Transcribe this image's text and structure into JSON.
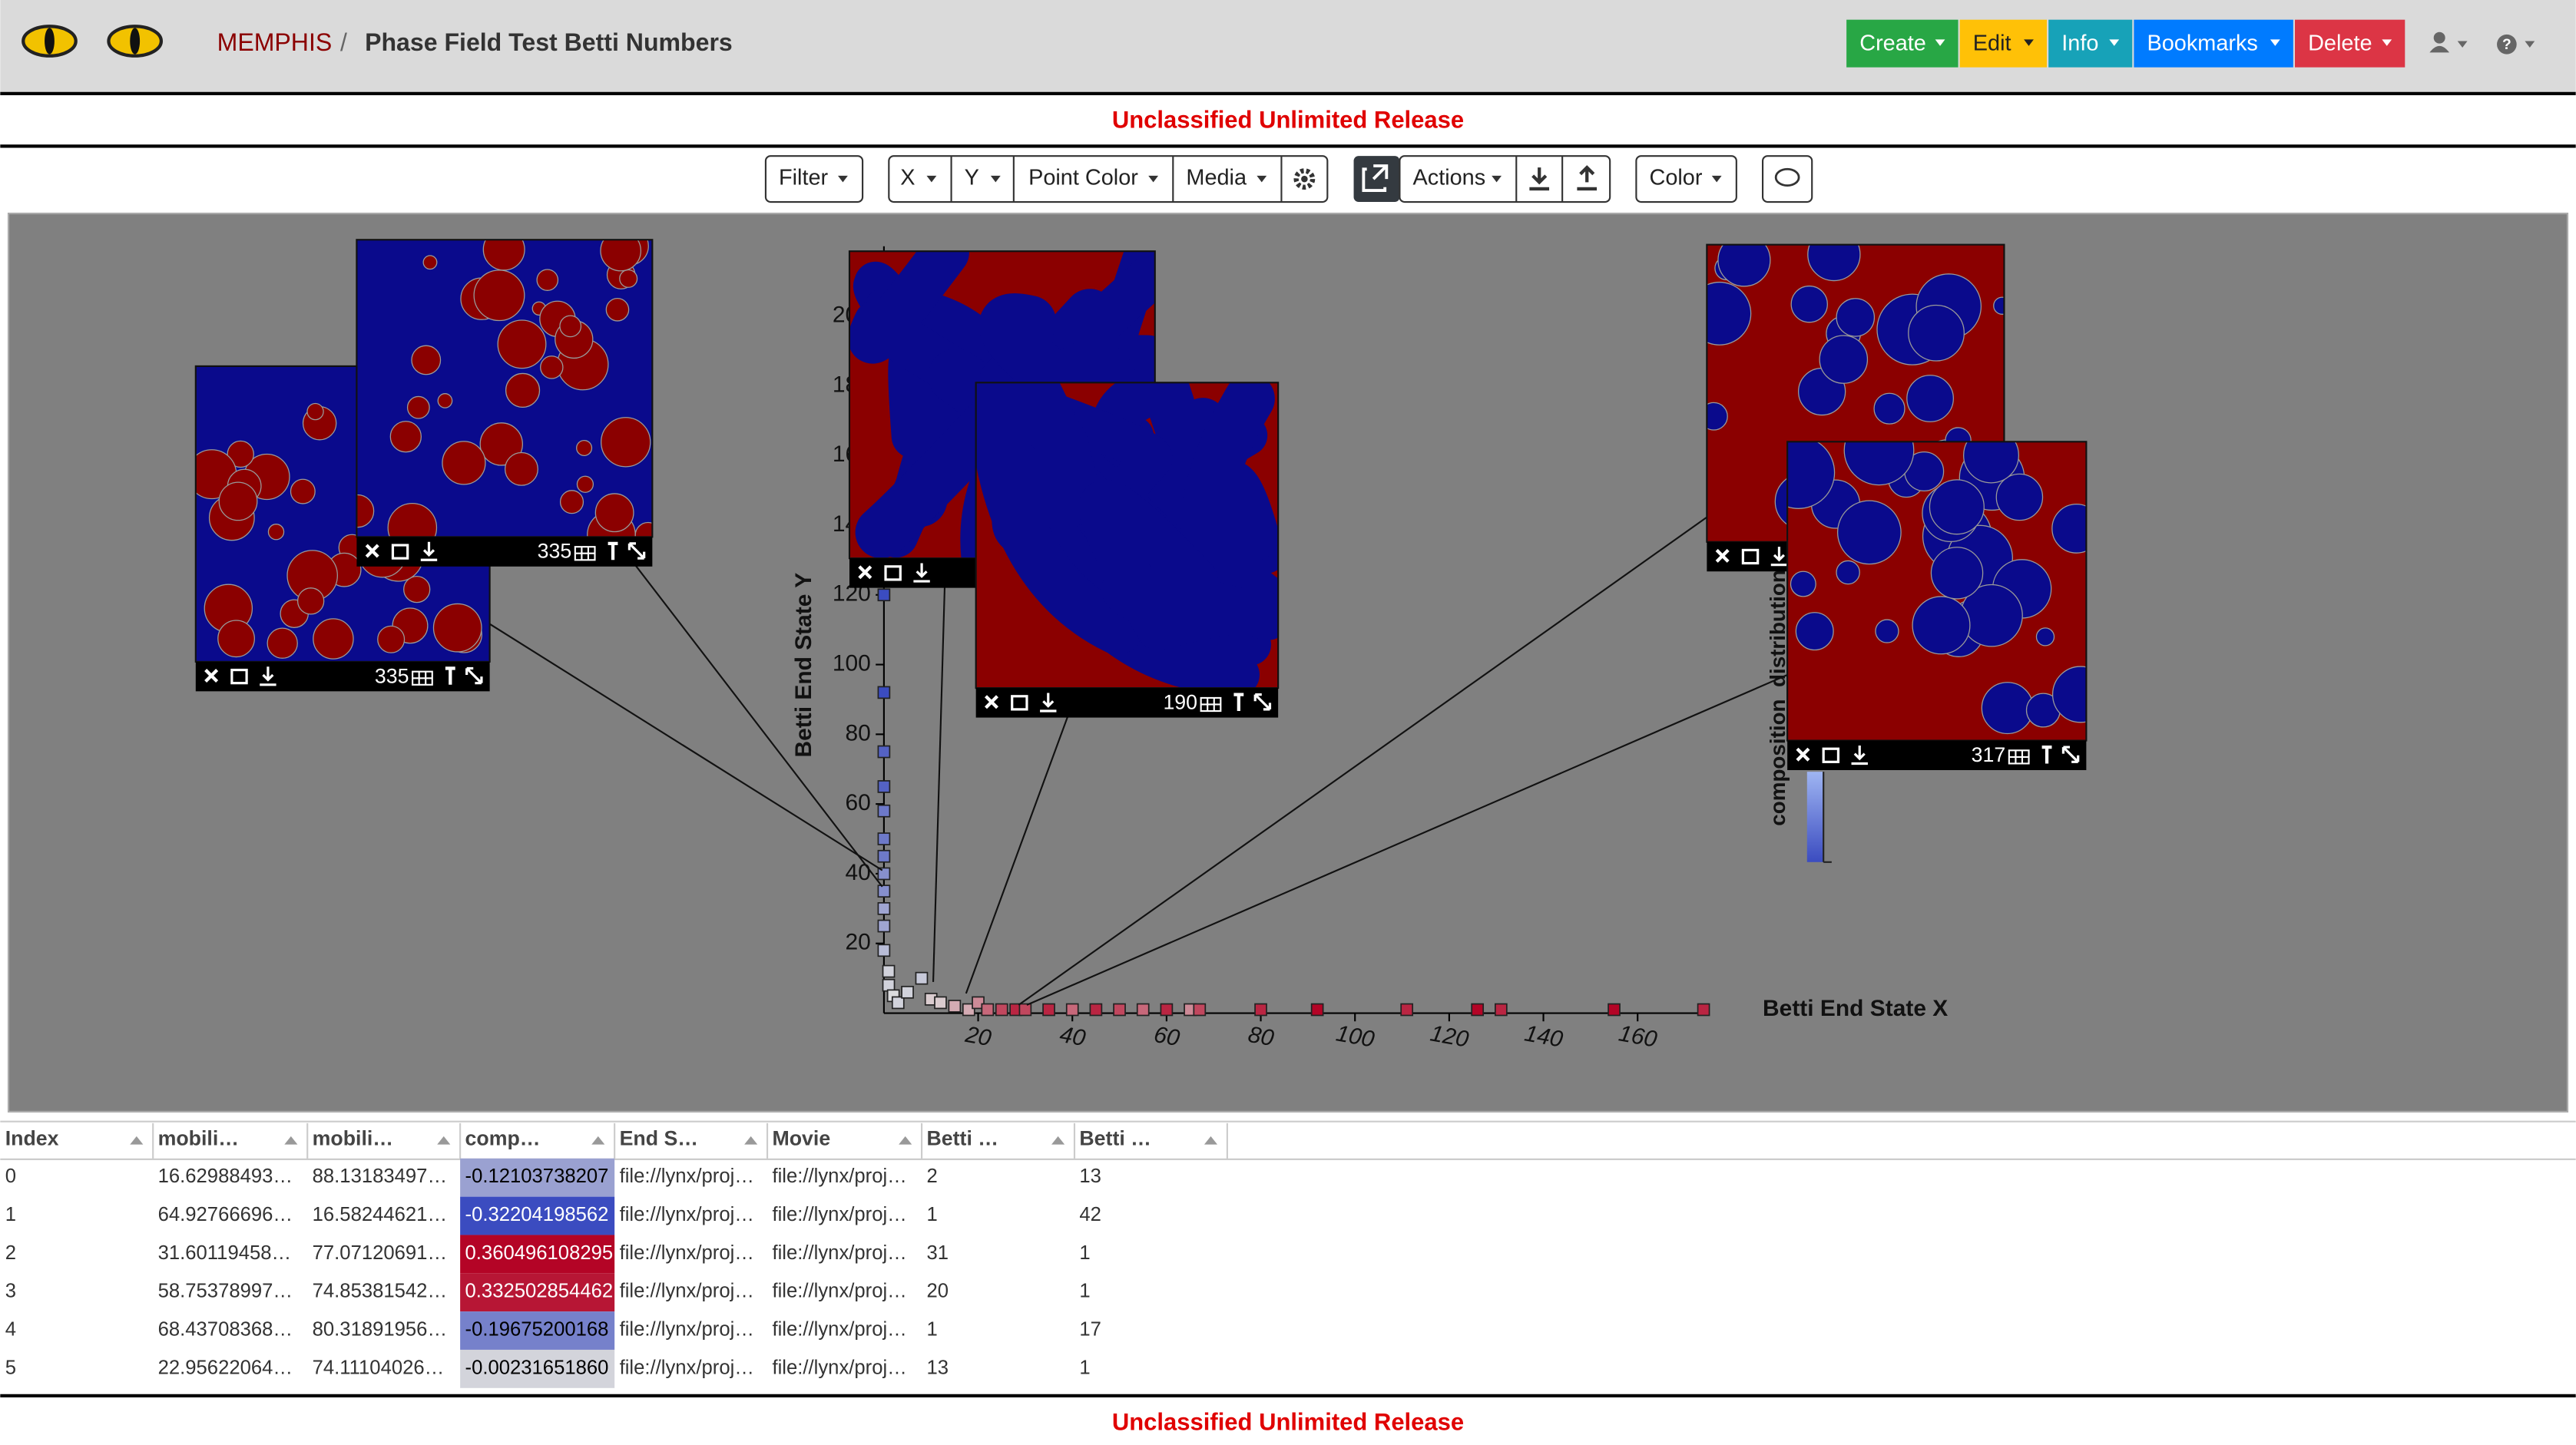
{
  "header": {
    "app": "MEMPHIS",
    "separator": "/",
    "title": "Phase Field Test Betti Numbers",
    "menus": [
      "Create",
      "Edit",
      "Info",
      "Bookmarks",
      "Delete"
    ]
  },
  "banner_top": "Unclassified Unlimited Release",
  "toolbar": [
    "Filter",
    "X",
    "Y",
    "Point Color",
    "Media",
    "Actions",
    "Color"
  ],
  "plot": {
    "type": "scatter",
    "x_label": "Betti End State X",
    "y_label": "Betti End State Y",
    "color_label": "composition_distribution",
    "xlim": [
      0,
      174
    ],
    "ylim": [
      0,
      220
    ],
    "xticks": [
      20,
      40,
      60,
      80,
      100,
      120,
      140,
      160
    ],
    "yticks": [
      20,
      40,
      60,
      80,
      100,
      120,
      140,
      160,
      180,
      200
    ],
    "x": [
      0,
      0,
      0,
      0,
      0,
      0,
      0,
      0,
      0,
      0,
      0,
      0,
      1,
      1,
      2,
      3,
      5,
      8,
      10,
      12,
      15,
      18,
      20,
      22,
      25,
      28,
      30,
      35,
      40,
      45,
      50,
      55,
      60,
      65,
      67,
      80,
      92,
      111,
      126,
      131,
      155,
      174
    ],
    "y": [
      120,
      92,
      75,
      65,
      58,
      50,
      45,
      40,
      35,
      30,
      25,
      18,
      12,
      8,
      5,
      3,
      6,
      10,
      4,
      3,
      2,
      1,
      3,
      1,
      1,
      1,
      1,
      1,
      1,
      1,
      1,
      1,
      1,
      1,
      1,
      1,
      1,
      1,
      1,
      1,
      1,
      1
    ],
    "color_values": [
      -0.3,
      -0.3,
      -0.25,
      -0.25,
      -0.2,
      -0.2,
      -0.2,
      -0.15,
      -0.15,
      -0.1,
      -0.1,
      -0.05,
      0,
      0,
      0.02,
      0,
      0,
      -0.02,
      0.05,
      0.05,
      0.1,
      0.1,
      0.15,
      0.2,
      0.25,
      0.3,
      0.25,
      0.3,
      0.2,
      0.3,
      0.25,
      0.2,
      0.3,
      0.15,
      0.25,
      0.3,
      0.35,
      0.3,
      0.35,
      0.3,
      0.35,
      0.3
    ],
    "media": [
      335,
      335,
      190,
      317
    ]
  },
  "table": {
    "columns": [
      "Index",
      "mobili…",
      "mobili…",
      "comp…",
      "End S…",
      "Movie",
      "Betti …",
      "Betti …"
    ],
    "rows": [
      [
        "0",
        "16.62988493…",
        "88.13183497…",
        "-0.12103738207",
        "file://lynx/proj…",
        "file://lynx/proj…",
        "2",
        "13"
      ],
      [
        "1",
        "64.92766696…",
        "16.58244621…",
        "-0.32204198562",
        "file://lynx/proj…",
        "file://lynx/proj…",
        "1",
        "42"
      ],
      [
        "2",
        "31.60119458…",
        "77.07120691…",
        "0.360496108295",
        "file://lynx/proj…",
        "file://lynx/proj…",
        "31",
        "1"
      ],
      [
        "3",
        "58.75378997…",
        "74.85381542…",
        "0.332502854462",
        "file://lynx/proj…",
        "file://lynx/proj…",
        "20",
        "1"
      ],
      [
        "4",
        "68.43708368…",
        "80.31891956…",
        "-0.19675200168",
        "file://lynx/proj…",
        "file://lynx/proj…",
        "1",
        "17"
      ],
      [
        "5",
        "22.95622064…",
        "74.11104026…",
        "-0.00231651860",
        "file://lynx/proj…",
        "file://lynx/proj…",
        "13",
        "1"
      ]
    ]
  },
  "banner_bottom": "Unclassified Unlimited Release"
}
